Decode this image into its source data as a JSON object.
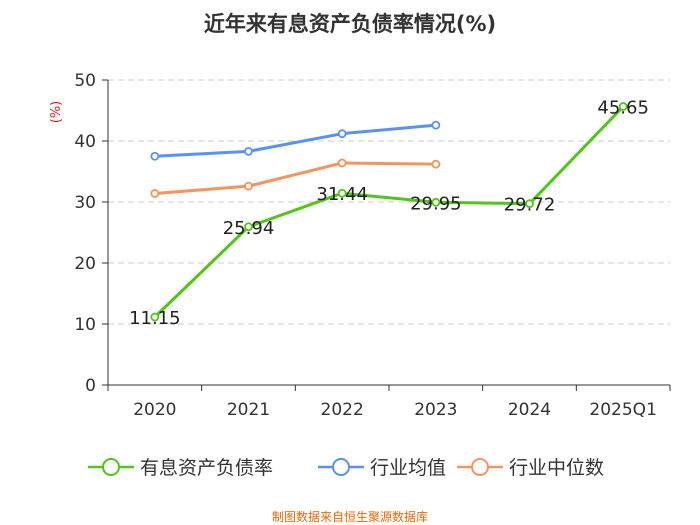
{
  "chart_data": {
    "type": "line",
    "title": "近年来有息资产负债率情况(%)",
    "ylabel": "(%)",
    "categories": [
      "2020",
      "2021",
      "2022",
      "2023",
      "2024",
      "2025Q1"
    ],
    "ylim": [
      0,
      50
    ],
    "yticks": [
      0,
      10,
      20,
      30,
      40,
      50
    ],
    "grid": true,
    "legend_position": "bottom",
    "series": [
      {
        "name": "有息资产负债率",
        "color": "#52c41a",
        "show_labels": true,
        "values": [
          11.15,
          25.94,
          31.44,
          29.95,
          29.72,
          45.65
        ]
      },
      {
        "name": "行业均值",
        "color": "#5b8ff9",
        "values": [
          37.5,
          38.3,
          41.2,
          42.6,
          null,
          null
        ]
      },
      {
        "name": "行业中位数",
        "color": "#f7935c",
        "values": [
          31.4,
          32.6,
          36.4,
          36.2,
          null,
          null
        ]
      }
    ]
  },
  "source_text": "制图数据来自恒生聚源数据库",
  "colors": {
    "source": "#e8690b",
    "ylabel": "#e02020",
    "axis": "#333333",
    "grid": "#cccccc"
  }
}
